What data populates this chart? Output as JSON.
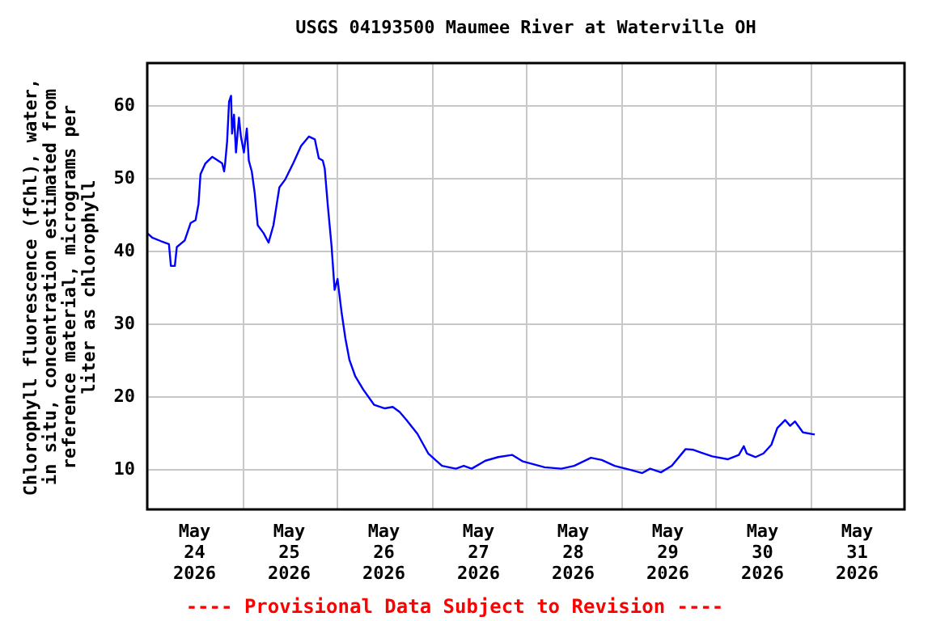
{
  "chart_data": {
    "type": "line",
    "title": "USGS 04193500 Maumee River at Waterville OH",
    "ylabel": "Chlorophyll fluorescence (fChl), water, in situ, concentration estimated from reference material, micrograms per liter as chlorophyll",
    "annotations": [
      "---- Provisional Data Subject to Revision ----"
    ],
    "x": [
      "2026-05-24T00:00",
      "2026-05-24T01:15",
      "2026-05-24T03:30",
      "2026-05-24T05:30",
      "2026-05-24T06:00",
      "2026-05-24T07:00",
      "2026-05-24T07:30",
      "2026-05-24T09:30",
      "2026-05-24T11:00",
      "2026-05-24T12:15",
      "2026-05-24T13:00",
      "2026-05-24T13:30",
      "2026-05-24T14:45",
      "2026-05-24T16:30",
      "2026-05-24T19:00",
      "2026-05-24T19:30",
      "2026-05-24T19:45",
      "2026-05-24T20:15",
      "2026-05-24T20:45",
      "2026-05-24T21:15",
      "2026-05-24T21:30",
      "2026-05-24T22:00",
      "2026-05-24T22:30",
      "2026-05-24T23:15",
      "2026-05-24T23:45",
      "2026-05-25T00:30",
      "2026-05-25T01:15",
      "2026-05-25T01:45",
      "2026-05-25T02:30",
      "2026-05-25T03:15",
      "2026-05-25T04:00",
      "2026-05-25T05:30",
      "2026-05-25T06:45",
      "2026-05-25T08:00",
      "2026-05-25T09:30",
      "2026-05-25T11:00",
      "2026-05-25T13:00",
      "2026-05-25T15:00",
      "2026-05-25T17:00",
      "2026-05-25T18:30",
      "2026-05-25T19:30",
      "2026-05-25T20:30",
      "2026-05-25T21:00",
      "2026-05-25T21:45",
      "2026-05-25T22:45",
      "2026-05-25T23:30",
      "2026-05-26T00:15",
      "2026-05-26T01:15",
      "2026-05-26T02:15",
      "2026-05-26T03:15",
      "2026-05-26T04:45",
      "2026-05-26T06:45",
      "2026-05-26T09:30",
      "2026-05-26T12:15",
      "2026-05-26T14:15",
      "2026-05-26T16:00",
      "2026-05-26T17:45",
      "2026-05-26T20:30",
      "2026-05-26T23:15",
      "2026-05-27T02:45",
      "2026-05-27T06:15",
      "2026-05-27T08:15",
      "2026-05-27T10:15",
      "2026-05-27T13:45",
      "2026-05-27T17:00",
      "2026-05-27T20:30",
      "2026-05-27T23:15",
      "2026-05-28T04:45",
      "2026-05-28T09:00",
      "2026-05-28T12:15",
      "2026-05-28T16:30",
      "2026-05-28T19:15",
      "2026-05-28T22:30",
      "2026-05-29T02:45",
      "2026-05-29T05:30",
      "2026-05-29T07:30",
      "2026-05-29T10:15",
      "2026-05-29T13:00",
      "2026-05-29T16:30",
      "2026-05-29T18:30",
      "2026-05-29T20:30",
      "2026-05-29T23:15",
      "2026-05-30T03:15",
      "2026-05-30T06:00",
      "2026-05-30T07:15",
      "2026-05-30T08:00",
      "2026-05-30T10:15",
      "2026-05-30T12:15",
      "2026-05-30T14:15",
      "2026-05-30T15:45",
      "2026-05-30T17:45",
      "2026-05-30T19:00",
      "2026-05-30T20:15",
      "2026-05-30T22:15",
      "2026-05-31T01:15"
    ],
    "series": [
      {
        "color": "#0000ff",
        "values": [
          42.4,
          41.8,
          41.3,
          40.9,
          37.9,
          37.9,
          40.5,
          41.4,
          43.8,
          44.2,
          46.4,
          50.5,
          52,
          52.9,
          52,
          50.9,
          52,
          55,
          60.5,
          61.3,
          56.1,
          58.7,
          53.5,
          58.3,
          55.7,
          53.5,
          56.8,
          52.4,
          50.9,
          47.9,
          43.5,
          42.4,
          41.1,
          43.5,
          48.7,
          49.8,
          52,
          54.4,
          55.7,
          55.3,
          52.7,
          52.4,
          51.3,
          46.4,
          40.5,
          34.6,
          36.1,
          31.6,
          27.9,
          25,
          22.7,
          20.9,
          18.8,
          18.3,
          18.5,
          17.8,
          16.7,
          14.8,
          12.1,
          10.4,
          10,
          10.4,
          10,
          11.1,
          11.6,
          11.9,
          11,
          10.2,
          10,
          10.4,
          11.5,
          11.2,
          10.4,
          9.8,
          9.4,
          10,
          9.5,
          10.4,
          12.7,
          12.6,
          12.2,
          11.7,
          11.3,
          11.9,
          13.1,
          12.1,
          11.6,
          12.1,
          13.3,
          15.6,
          16.7,
          15.9,
          16.5,
          15,
          14.7
        ]
      }
    ],
    "xlim": [
      "2026-05-24T00:00",
      "2026-06-01T00:00"
    ],
    "xticks": [
      {
        "value": "2026-05-24T12:00",
        "label": "May 24 2026"
      },
      {
        "value": "2026-05-25T12:00",
        "label": "May 25 2026"
      },
      {
        "value": "2026-05-26T12:00",
        "label": "May 26 2026"
      },
      {
        "value": "2026-05-27T12:00",
        "label": "May 27 2026"
      },
      {
        "value": "2026-05-28T12:00",
        "label": "May 28 2026"
      },
      {
        "value": "2026-05-29T12:00",
        "label": "May 29 2026"
      },
      {
        "value": "2026-05-30T12:00",
        "label": "May 30 2026"
      },
      {
        "value": "2026-05-31T12:00",
        "label": "May 31 2026"
      },
      {
        "value": "2026-05-25T00:00",
        "label": null
      },
      {
        "value": "2026-05-26T00:00",
        "label": null
      },
      {
        "value": "2026-05-27T00:00",
        "label": null
      },
      {
        "value": "2026-05-28T00:00",
        "label": null
      },
      {
        "value": "2026-05-29T00:00",
        "label": null
      },
      {
        "value": "2026-05-30T00:00",
        "label": null
      },
      {
        "value": "2026-05-31T00:00",
        "label": null
      }
    ],
    "ylim": [
      4.4,
      65.8
    ],
    "yticks": [
      10,
      20,
      30,
      40,
      50,
      60
    ],
    "grid": true,
    "marker": "none",
    "line_style": "solid"
  }
}
